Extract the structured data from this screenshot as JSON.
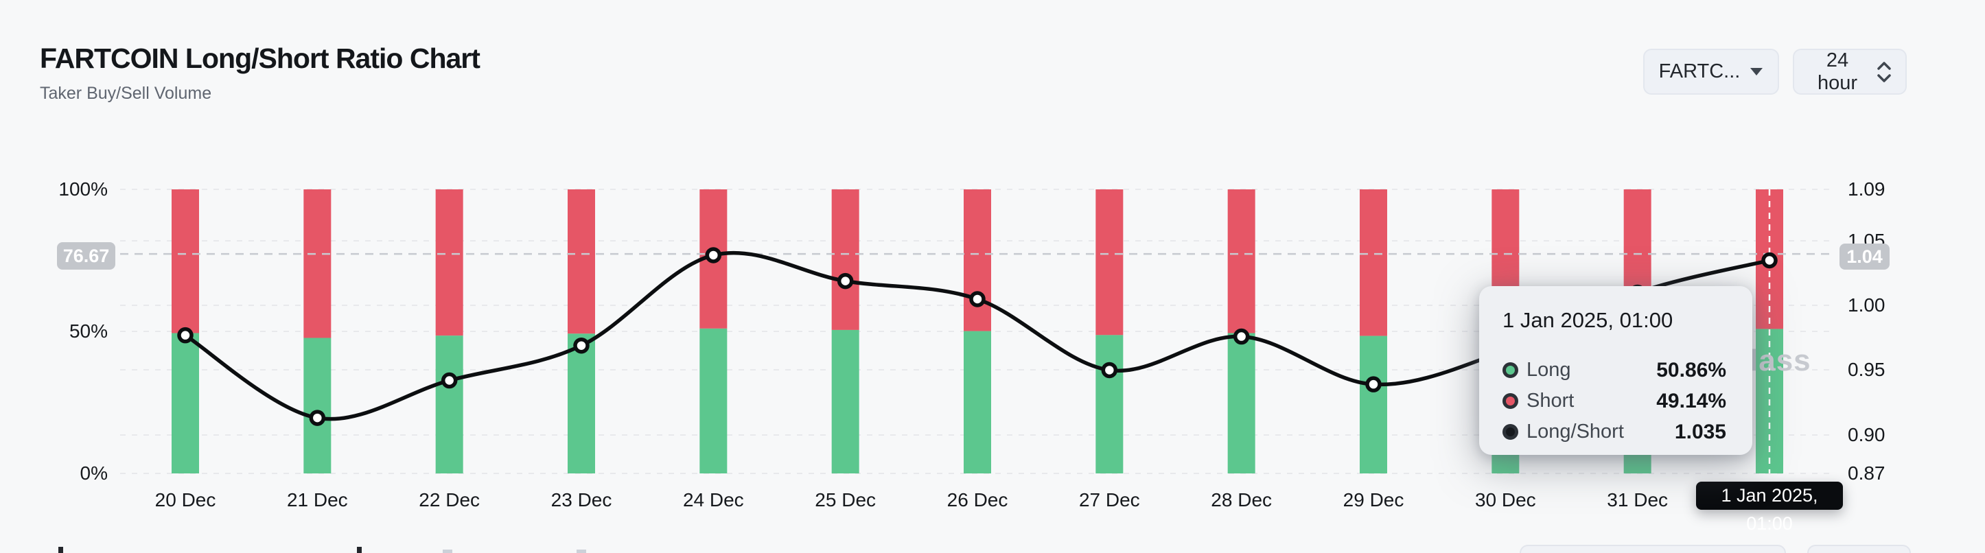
{
  "header": {
    "title": "FARTCOIN Long/Short Ratio Chart",
    "subtitle": "Taker Buy/Sell Volume"
  },
  "controls": {
    "symbol_select": "FARTC...",
    "symbol_icon": "chevron-down-icon",
    "interval_select": "24 hour",
    "interval_icon": "chevrons-up-down-icon"
  },
  "watermark": "lass",
  "crosshair": {
    "left_badge": "76.67",
    "right_badge": "1.04",
    "x_label": "1 Jan 2025, 01:00",
    "hovered_index": 12
  },
  "tooltip": {
    "title": "1 Jan 2025, 01:00",
    "rows": [
      {
        "label": "Long",
        "value": "50.86%",
        "color": "#5cc78e"
      },
      {
        "label": "Short",
        "value": "49.14%",
        "color": "#e65666"
      },
      {
        "label": "Long/Short",
        "value": "1.035",
        "color": "#16191d"
      }
    ]
  },
  "chart_data": {
    "type": "bar",
    "subtype": "percent-stacked-columns-with-line-overlay",
    "title": "FARTCOIN Long/Short Ratio Chart",
    "categories": [
      "20 Dec",
      "21 Dec",
      "22 Dec",
      "23 Dec",
      "24 Dec",
      "25 Dec",
      "26 Dec",
      "27 Dec",
      "28 Dec",
      "29 Dec",
      "30 Dec",
      "31 Dec",
      "1 Jan 2025, 01:00"
    ],
    "series": [
      {
        "name": "Long",
        "unit": "%",
        "color": "#5cc78e",
        "values": [
          49.4,
          47.7,
          48.5,
          49.2,
          51.0,
          50.5,
          50.1,
          48.7,
          49.4,
          48.4,
          49.1,
          50.2,
          50.86
        ]
      },
      {
        "name": "Short",
        "unit": "%",
        "color": "#e65666",
        "values": [
          50.6,
          52.3,
          51.5,
          50.8,
          49.0,
          49.5,
          49.9,
          51.3,
          50.6,
          51.6,
          50.9,
          49.8,
          49.14
        ]
      }
    ],
    "line_series": {
      "name": "Long/Short",
      "color": "#0c0e10",
      "values": [
        0.977,
        0.913,
        0.942,
        0.969,
        1.039,
        1.019,
        1.005,
        0.95,
        0.976,
        0.939,
        0.965,
        1.01,
        1.035
      ]
    },
    "left_axis": {
      "unit": "%",
      "min": 0,
      "max": 100,
      "ticks": [
        {
          "label": "100%",
          "value": 100
        },
        {
          "label": "50%",
          "value": 50
        },
        {
          "label": "0%",
          "value": 0
        }
      ]
    },
    "right_axis": {
      "min": 0.87,
      "max": 1.09,
      "ticks": [
        {
          "label": "1.09",
          "value": 1.09
        },
        {
          "label": "1.05",
          "value": 1.05
        },
        {
          "label": "1.00",
          "value": 1.0
        },
        {
          "label": "0.95",
          "value": 0.95
        },
        {
          "label": "0.90",
          "value": 0.9
        },
        {
          "label": "0.87",
          "value": 0.87
        }
      ]
    },
    "grid": "dashed-horizontal",
    "legend_position": "none",
    "hovered_point": {
      "category": "1 Jan 2025, 01:00",
      "long": "50.86%",
      "short": "49.14%",
      "ratio": "1.035"
    }
  }
}
